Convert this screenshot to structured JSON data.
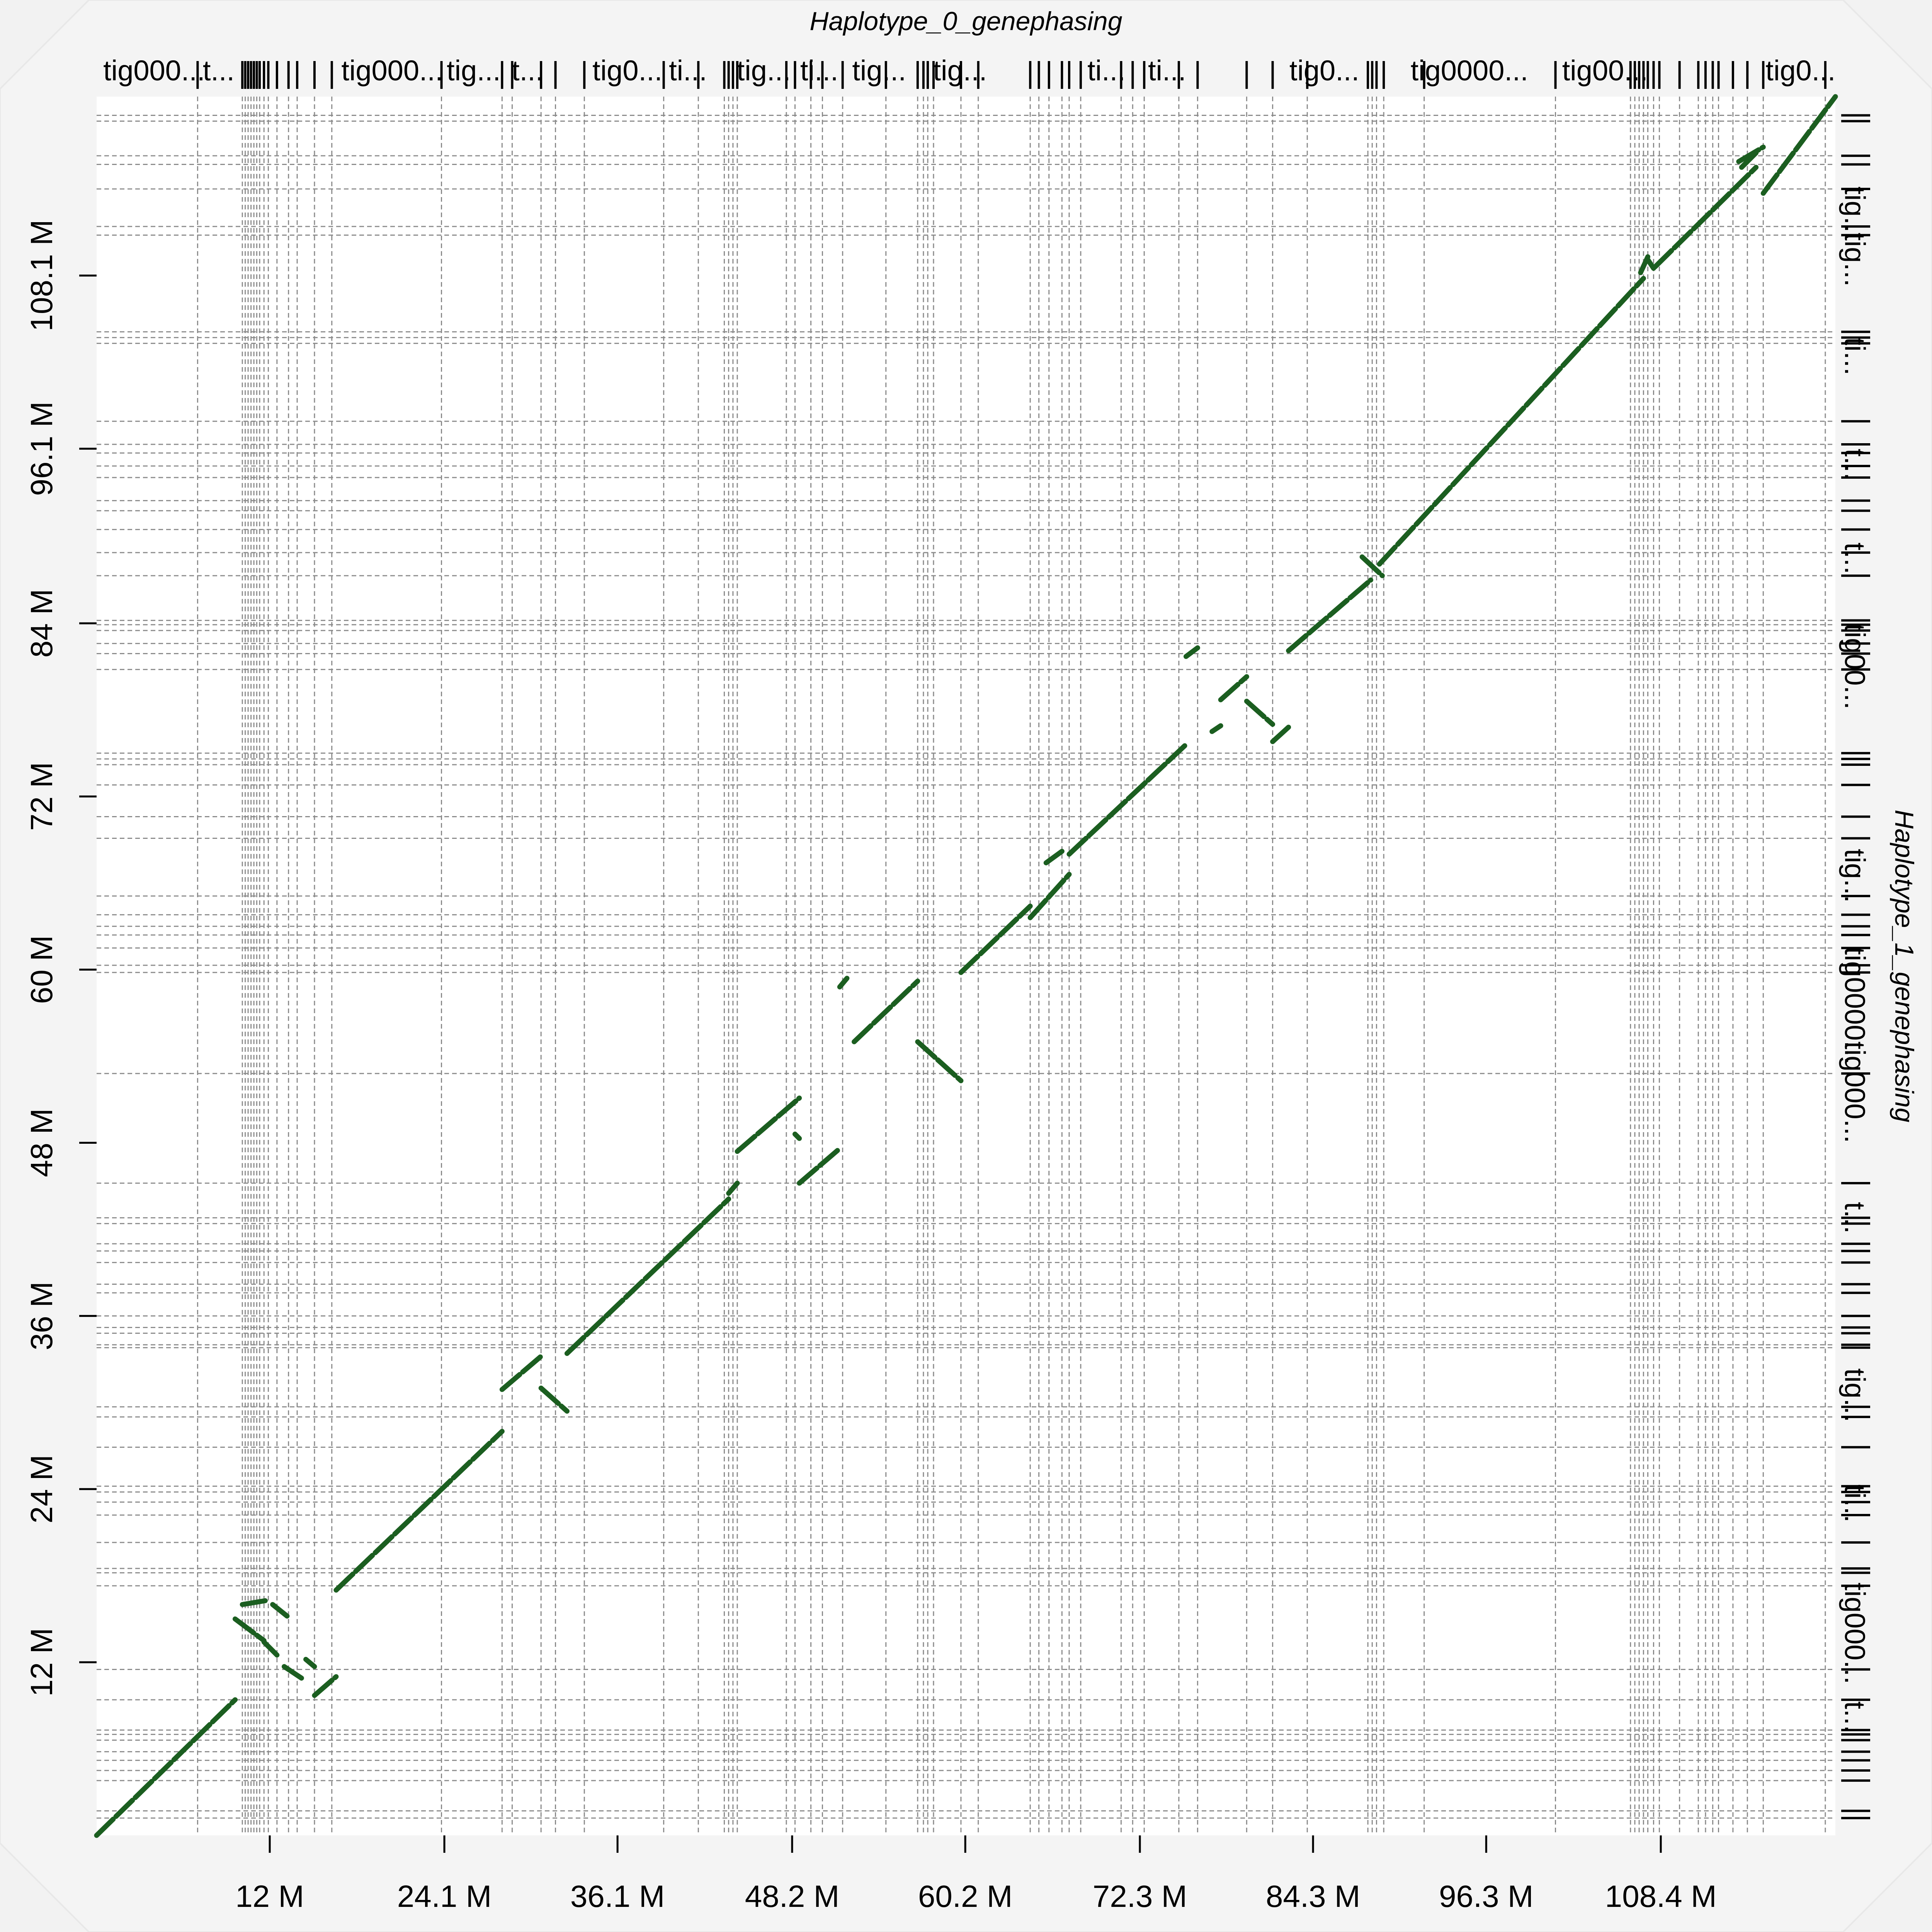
{
  "chart_data": {
    "type": "dotplot",
    "title": "Haplotype_0_genephasing",
    "xlabel": "Haplotype_0_genephasing",
    "ylabel": "Haplotype_1_genephasing",
    "xlim": [
      0,
      120.5
    ],
    "ylim": [
      0,
      120.5
    ],
    "x_ticks": [
      {
        "value": 12.0,
        "label": "12 M"
      },
      {
        "value": 24.1,
        "label": "24.1 M"
      },
      {
        "value": 36.1,
        "label": "36.1 M"
      },
      {
        "value": 48.2,
        "label": "48.2 M"
      },
      {
        "value": 60.2,
        "label": "60.2 M"
      },
      {
        "value": 72.3,
        "label": "72.3 M"
      },
      {
        "value": 84.3,
        "label": "84.3 M"
      },
      {
        "value": 96.3,
        "label": "96.3 M"
      },
      {
        "value": 108.4,
        "label": "108.4 M"
      }
    ],
    "y_ticks": [
      {
        "value": 12.0,
        "label": "12 M"
      },
      {
        "value": 24.0,
        "label": "24 M"
      },
      {
        "value": 36.0,
        "label": "36 M"
      },
      {
        "value": 48.0,
        "label": "48 M"
      },
      {
        "value": 60.0,
        "label": "60 M"
      },
      {
        "value": 72.0,
        "label": "72 M"
      },
      {
        "value": 84.0,
        "label": "84 M"
      },
      {
        "value": 96.1,
        "label": "96.1 M"
      },
      {
        "value": 108.1,
        "label": "108.1 M"
      }
    ],
    "x_contig_labels": [
      {
        "pos": 0.3,
        "label": "tig000..."
      },
      {
        "pos": 7.2,
        "label": "t..."
      },
      {
        "pos": 16.8,
        "label": "tig000..."
      },
      {
        "pos": 24.1,
        "label": "tig..."
      },
      {
        "pos": 28.6,
        "label": "t..."
      },
      {
        "pos": 34.2,
        "label": "tig0..."
      },
      {
        "pos": 39.5,
        "label": "ti..."
      },
      {
        "pos": 44.2,
        "label": "tig..."
      },
      {
        "pos": 48.6,
        "label": "ti..."
      },
      {
        "pos": 52.2,
        "label": "tig..."
      },
      {
        "pos": 57.8,
        "label": "tig..."
      },
      {
        "pos": 68.5,
        "label": "ti..."
      },
      {
        "pos": 72.7,
        "label": "ti..."
      },
      {
        "pos": 82.5,
        "label": "tig0..."
      },
      {
        "pos": 90.9,
        "label": "tig0000..."
      },
      {
        "pos": 101.4,
        "label": "tig00..."
      },
      {
        "pos": 115.5,
        "label": "tig0..."
      }
    ],
    "y_contig_labels": [
      {
        "pos": 112.4,
        "label": "tig..."
      },
      {
        "pos": 109.2,
        "label": "tig..."
      },
      {
        "pos": 102.5,
        "label": "ti..."
      },
      {
        "pos": 95.0,
        "label": "t..."
      },
      {
        "pos": 88.5,
        "label": "t..."
      },
      {
        "pos": 81.0,
        "label": "tig00..."
      },
      {
        "pos": 66.5,
        "label": "tig..."
      },
      {
        "pos": 57.5,
        "label": "tig0000..."
      },
      {
        "pos": 51.5,
        "label": "tig000..."
      },
      {
        "pos": 42.8,
        "label": "t..."
      },
      {
        "pos": 30.5,
        "label": "tig..."
      },
      {
        "pos": 23.0,
        "label": "ti..."
      },
      {
        "pos": 14.0,
        "label": "tig000..."
      },
      {
        "pos": 8.2,
        "label": "t..."
      }
    ],
    "x_boundaries": [
      7.0,
      10.1,
      10.3,
      10.5,
      10.7,
      10.9,
      11.1,
      11.3,
      11.6,
      11.9,
      12.5,
      13.3,
      13.9,
      15.1,
      16.3,
      23.9,
      28.1,
      28.8,
      30.8,
      31.8,
      33.8,
      39.3,
      41.7,
      43.5,
      43.8,
      44.1,
      44.4,
      47.8,
      48.4,
      49.5,
      50.3,
      51.7,
      54.7,
      56.9,
      57.3,
      57.6,
      58.0,
      59.9,
      61.1,
      64.7,
      65.3,
      66.0,
      66.9,
      67.4,
      68.2,
      71.0,
      71.8,
      72.6,
      75.0,
      76.3,
      79.7,
      81.5,
      83.9,
      88.1,
      88.4,
      88.7,
      89.2,
      92.0,
      101.1,
      106.3,
      106.6,
      106.9,
      107.2,
      107.5,
      107.9,
      108.3,
      109.7,
      111.0,
      111.5,
      112.0,
      112.4,
      113.4,
      114.4,
      115.5,
      119.8
    ],
    "y_boundaries": [
      119.2,
      118.8,
      116.4,
      115.8,
      114.1,
      111.5,
      110.9,
      104.2,
      103.8,
      103.4,
      98.0,
      96.4,
      95.8,
      94.9,
      94.1,
      92.5,
      91.8,
      90.5,
      88.9,
      87.3,
      84.2,
      83.9,
      83.5,
      82.6,
      81.9,
      80.8,
      75.0,
      74.6,
      74.2,
      72.8,
      70.6,
      69.1,
      65.1,
      63.8,
      63.0,
      62.4,
      61.5,
      60.3,
      59.8,
      52.8,
      45.2,
      42.8,
      42.4,
      41.0,
      40.5,
      39.7,
      38.2,
      37.6,
      36.0,
      35.2,
      34.8,
      34.0,
      33.8,
      29.7,
      29.0,
      26.9,
      24.2,
      23.8,
      23.1,
      22.2,
      20.3,
      18.5,
      18.2,
      17.3,
      11.5,
      9.4,
      7.3,
      7.0,
      6.6,
      5.8,
      5.2,
      4.5,
      3.8,
      1.7,
      1.2
    ],
    "alignments": [
      {
        "x1": 0.0,
        "y1": 0.0,
        "x2": 9.6,
        "y2": 9.4,
        "strand": "+"
      },
      {
        "x1": 9.6,
        "y1": 15.0,
        "x2": 11.6,
        "y2": 13.5,
        "strand": "-"
      },
      {
        "x1": 10.1,
        "y1": 16.0,
        "x2": 11.9,
        "y2": 16.3,
        "strand": "+"
      },
      {
        "x1": 11.6,
        "y1": 13.4,
        "x2": 12.5,
        "y2": 12.5,
        "strand": "-"
      },
      {
        "x1": 12.2,
        "y1": 16.0,
        "x2": 13.2,
        "y2": 15.2,
        "strand": "-"
      },
      {
        "x1": 13.0,
        "y1": 11.7,
        "x2": 14.2,
        "y2": 10.9,
        "strand": "-"
      },
      {
        "x1": 14.5,
        "y1": 12.2,
        "x2": 15.1,
        "y2": 11.7,
        "strand": "-"
      },
      {
        "x1": 15.1,
        "y1": 9.7,
        "x2": 16.6,
        "y2": 11.0,
        "strand": "+"
      },
      {
        "x1": 16.6,
        "y1": 17.0,
        "x2": 28.1,
        "y2": 28.0,
        "strand": "+"
      },
      {
        "x1": 28.1,
        "y1": 30.9,
        "x2": 30.8,
        "y2": 33.2,
        "strand": "+"
      },
      {
        "x1": 30.8,
        "y1": 31.0,
        "x2": 32.6,
        "y2": 29.4,
        "strand": "-"
      },
      {
        "x1": 32.6,
        "y1": 33.4,
        "x2": 43.8,
        "y2": 44.1,
        "strand": "+"
      },
      {
        "x1": 43.8,
        "y1": 44.5,
        "x2": 44.4,
        "y2": 45.2,
        "strand": "+"
      },
      {
        "x1": 44.4,
        "y1": 47.4,
        "x2": 48.7,
        "y2": 51.1,
        "strand": "+"
      },
      {
        "x1": 48.4,
        "y1": 48.6,
        "x2": 48.7,
        "y2": 48.3,
        "strand": "-"
      },
      {
        "x1": 48.7,
        "y1": 45.2,
        "x2": 51.5,
        "y2": 47.6,
        "strand": "+"
      },
      {
        "x1": 51.5,
        "y1": 58.8,
        "x2": 52.0,
        "y2": 59.4,
        "strand": "+"
      },
      {
        "x1": 52.5,
        "y1": 55.0,
        "x2": 56.9,
        "y2": 59.2,
        "strand": "+"
      },
      {
        "x1": 56.9,
        "y1": 55.0,
        "x2": 59.9,
        "y2": 52.3,
        "strand": "-"
      },
      {
        "x1": 59.9,
        "y1": 59.8,
        "x2": 64.7,
        "y2": 64.4,
        "strand": "+"
      },
      {
        "x1": 64.7,
        "y1": 63.6,
        "x2": 67.4,
        "y2": 66.6,
        "strand": "+"
      },
      {
        "x1": 65.8,
        "y1": 67.4,
        "x2": 66.9,
        "y2": 68.2,
        "strand": "+"
      },
      {
        "x1": 67.4,
        "y1": 68.0,
        "x2": 75.5,
        "y2": 75.6,
        "strand": "+"
      },
      {
        "x1": 75.5,
        "y1": 81.7,
        "x2": 76.3,
        "y2": 82.3,
        "strand": "+"
      },
      {
        "x1": 77.3,
        "y1": 76.5,
        "x2": 77.9,
        "y2": 76.9,
        "strand": "+"
      },
      {
        "x1": 77.9,
        "y1": 78.7,
        "x2": 79.7,
        "y2": 80.3,
        "strand": "+"
      },
      {
        "x1": 79.7,
        "y1": 78.6,
        "x2": 81.5,
        "y2": 77.0,
        "strand": "-"
      },
      {
        "x1": 81.5,
        "y1": 75.8,
        "x2": 82.6,
        "y2": 76.8,
        "strand": "+"
      },
      {
        "x1": 82.6,
        "y1": 82.1,
        "x2": 88.3,
        "y2": 87.0,
        "strand": "+"
      },
      {
        "x1": 87.7,
        "y1": 88.6,
        "x2": 89.1,
        "y2": 87.3,
        "strand": "-"
      },
      {
        "x1": 88.9,
        "y1": 88.1,
        "x2": 107.2,
        "y2": 107.9,
        "strand": "+"
      },
      {
        "x1": 107.0,
        "y1": 108.3,
        "x2": 107.5,
        "y2": 109.4,
        "strand": "+"
      },
      {
        "x1": 107.5,
        "y1": 109.2,
        "x2": 107.9,
        "y2": 108.6,
        "strand": "-"
      },
      {
        "x1": 108.0,
        "y1": 108.7,
        "x2": 115.0,
        "y2": 115.6,
        "strand": "+"
      },
      {
        "x1": 113.8,
        "y1": 116.0,
        "x2": 115.5,
        "y2": 117.0,
        "strand": "+"
      },
      {
        "x1": 114.0,
        "y1": 115.6,
        "x2": 115.0,
        "y2": 116.6,
        "strand": "+"
      },
      {
        "x1": 115.5,
        "y1": 113.8,
        "x2": 120.5,
        "y2": 120.5,
        "strand": "+"
      }
    ],
    "colors": {
      "background": "#f2f2f2",
      "panel": "#ffffff",
      "alignment": "#1b5e20",
      "grid": "#8c8c8c",
      "text": "#000000"
    }
  }
}
